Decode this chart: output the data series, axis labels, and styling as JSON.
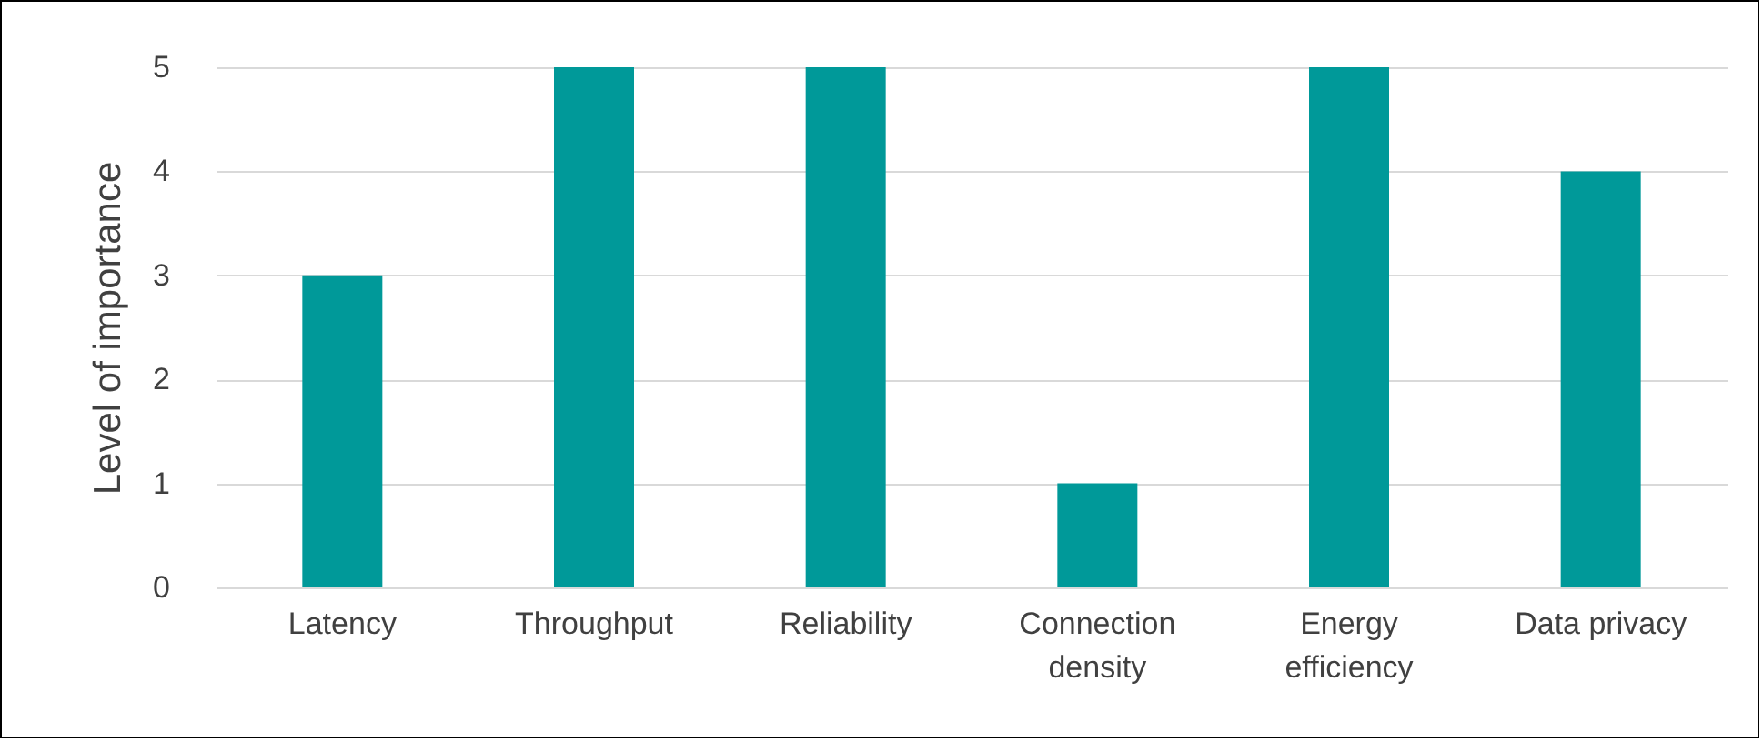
{
  "chart_data": {
    "type": "bar",
    "ylabel": "Level of importance",
    "categories": [
      "Latency",
      "Throughput",
      "Reliability",
      "Connection density",
      "Energy efficiency",
      "Data privacy"
    ],
    "values": [
      3,
      5,
      5,
      1,
      5,
      4
    ],
    "color": "#009999",
    "ylim": [
      0,
      5
    ],
    "yticks": [
      0,
      1,
      2,
      3,
      4,
      5
    ],
    "grid": "y"
  }
}
